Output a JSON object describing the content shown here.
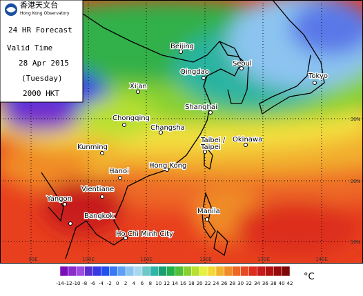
{
  "header": {
    "org_chinese": "香港天文台",
    "org_english": "Hong Kong Observatory",
    "title": "24 HR Forecast",
    "valid_label": "Valid Time",
    "date": "28 Apr 2015",
    "weekday": "(Tuesday)",
    "time": "2000 HKT"
  },
  "cities": [
    {
      "label": "Beijing"
    },
    {
      "label": "Qingdao"
    },
    {
      "label": "Seoul"
    },
    {
      "label": "Tokyo"
    },
    {
      "label": "Xi'an"
    },
    {
      "label": "Chongqing"
    },
    {
      "label": "Shanghai"
    },
    {
      "label": "Changsha"
    },
    {
      "label": "Kunming"
    },
    {
      "label": "Okinawa"
    },
    {
      "label": "Taibei /"
    },
    {
      "label": "Taipei"
    },
    {
      "label": "Hong Kong"
    },
    {
      "label": "Hanoi"
    },
    {
      "label": "Vientiane"
    },
    {
      "label": "Yangon"
    },
    {
      "label": "Bangkok"
    },
    {
      "label": "Manila"
    },
    {
      "label": "Ho Chi Minh City"
    }
  ],
  "longitudes": [
    "90E",
    "100E",
    "110E",
    "120E",
    "130E",
    "140E"
  ],
  "latitudes": [
    "30N",
    "20N",
    "10N"
  ],
  "colorbar": {
    "ticks": [
      -14,
      -12,
      -10,
      -8,
      -6,
      -4,
      -2,
      0,
      2,
      4,
      6,
      8,
      10,
      12,
      14,
      16,
      18,
      20,
      22,
      24,
      26,
      28,
      30,
      32,
      34,
      36,
      38,
      40,
      42
    ],
    "colors": [
      "#7a0fb8",
      "#8b2ccc",
      "#9d4be0",
      "#5a2fd0",
      "#3838e6",
      "#1f50f0",
      "#3a78f5",
      "#5ea0f5",
      "#8cc4f0",
      "#a8d8f0",
      "#6ec8c8",
      "#2fb4a8",
      "#1aa070",
      "#22b04a",
      "#50c03a",
      "#88d030",
      "#b8e030",
      "#e8f040",
      "#f4d835",
      "#f2b22e",
      "#f08c28",
      "#ee6624",
      "#e84a20",
      "#dd2e1e",
      "#c81a1a",
      "#b01010",
      "#980a0a",
      "#7e0808"
    ],
    "unit": "°C"
  }
}
